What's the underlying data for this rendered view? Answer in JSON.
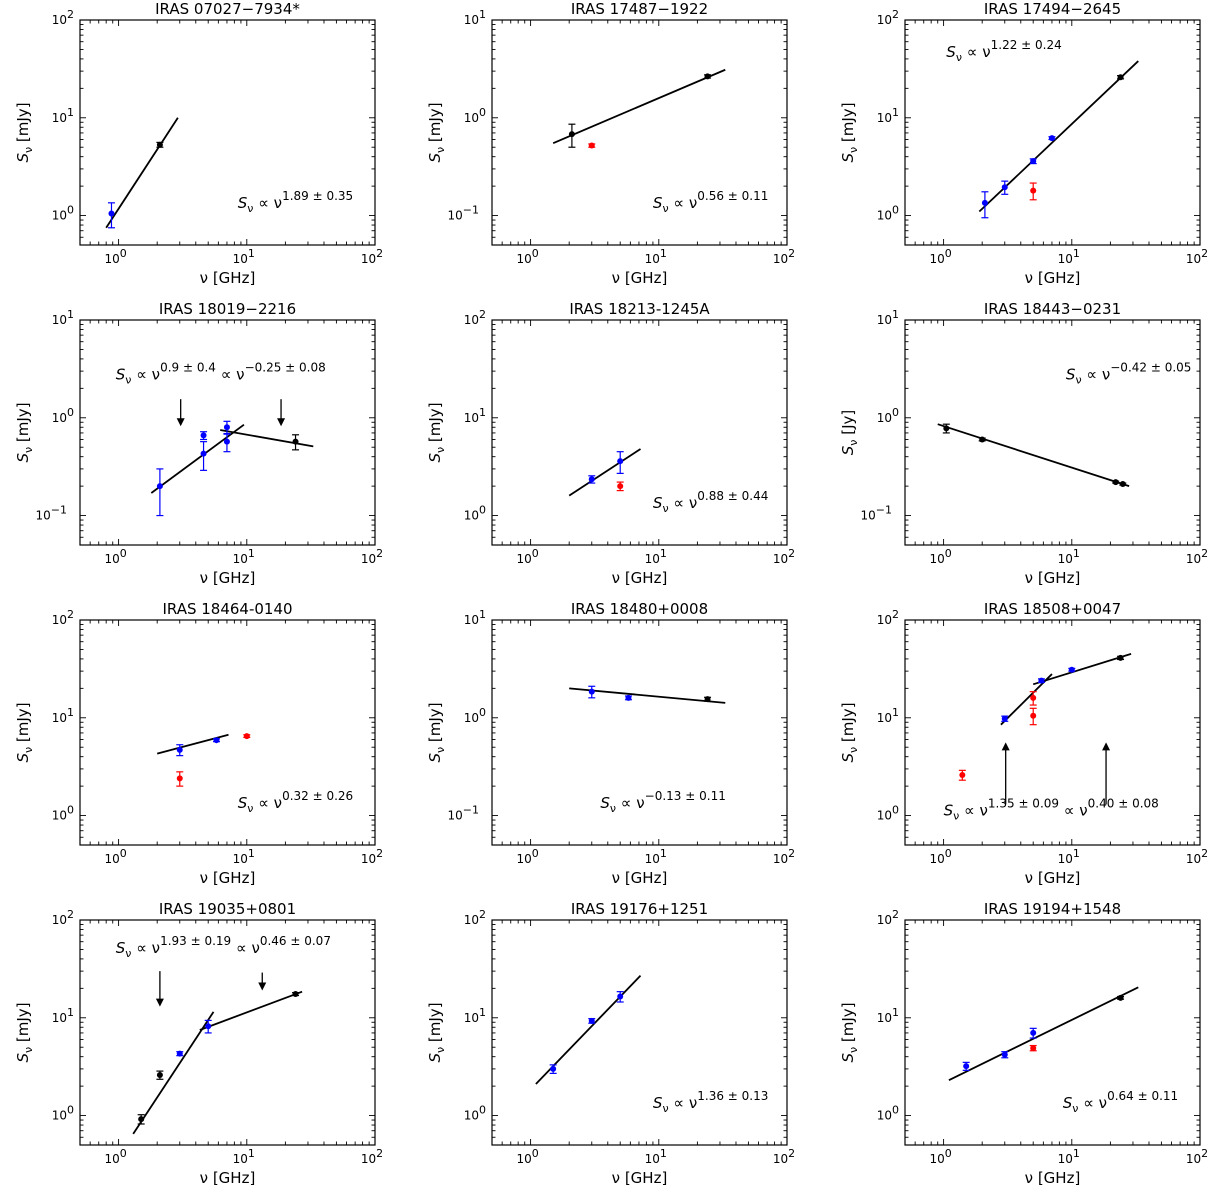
{
  "colors": {
    "archival": "#000000",
    "this_work": "#0000ff",
    "excluded": "#ff0000",
    "fit": "#000000"
  },
  "chart_data": [
    {
      "type": "scatter",
      "title": "IRAS 07027−7934*",
      "xlabel": "ν [GHz]",
      "ylabel_unit": "[mJy]",
      "xlim": [
        0.5,
        100
      ],
      "ylim": [
        0.5,
        100
      ],
      "log_x": true,
      "log_y": true,
      "xtick_exponents": [
        "0",
        "1",
        "2"
      ],
      "ytick_exponents": [
        "0",
        "1",
        "2"
      ],
      "series": [
        {
          "color": "blue",
          "points": [
            {
              "x": 0.88,
              "y": 1.05,
              "err": 0.3
            }
          ]
        },
        {
          "color": "black",
          "points": [
            {
              "x": 2.1,
              "y": 5.3,
              "err": 0.3
            }
          ]
        }
      ],
      "fits": [
        {
          "x": [
            0.8,
            2.9
          ],
          "y": [
            0.75,
            10.0
          ]
        }
      ],
      "annotation": {
        "exponent": "1.89 ± 0.35",
        "x": 8.5,
        "y": 1.2
      },
      "arrows": []
    },
    {
      "type": "scatter",
      "title": "IRAS 17487−1922",
      "xlabel": "ν [GHz]",
      "ylabel_unit": "[mJy]",
      "xlim": [
        0.5,
        100
      ],
      "ylim": [
        0.05,
        10
      ],
      "log_x": true,
      "log_y": true,
      "xtick_exponents": [
        "0",
        "1",
        "2"
      ],
      "ytick_exponents": [
        "−1",
        "0",
        "1"
      ],
      "series": [
        {
          "color": "black",
          "points": [
            {
              "x": 2.1,
              "y": 0.68,
              "err": 0.18
            },
            {
              "x": 24,
              "y": 2.65,
              "err": 0.1
            }
          ]
        },
        {
          "color": "red",
          "points": [
            {
              "x": 3,
              "y": 0.52,
              "err": 0.02
            }
          ]
        }
      ],
      "fits": [
        {
          "x": [
            1.5,
            33
          ],
          "y": [
            0.55,
            3.1
          ]
        }
      ],
      "annotation": {
        "exponent": "0.56 ± 0.11",
        "x": 9,
        "y": 0.12
      },
      "arrows": []
    },
    {
      "type": "scatter",
      "title": "IRAS 17494−2645",
      "xlabel": "ν [GHz]",
      "ylabel_unit": "[mJy]",
      "xlim": [
        0.5,
        100
      ],
      "ylim": [
        0.5,
        100
      ],
      "log_x": true,
      "log_y": true,
      "xtick_exponents": [
        "0",
        "1",
        "2"
      ],
      "ytick_exponents": [
        "0",
        "1",
        "2"
      ],
      "series": [
        {
          "color": "blue",
          "points": [
            {
              "x": 2.1,
              "y": 1.35,
              "err": 0.4
            },
            {
              "x": 3,
              "y": 1.95,
              "err": 0.3
            },
            {
              "x": 5,
              "y": 3.6,
              "err": 0.2
            },
            {
              "x": 7,
              "y": 6.2,
              "err": 0.2
            }
          ]
        },
        {
          "color": "black",
          "points": [
            {
              "x": 24,
              "y": 26,
              "err": 1.0
            }
          ]
        },
        {
          "color": "red",
          "points": [
            {
              "x": 5,
              "y": 1.8,
              "err": 0.35
            }
          ]
        }
      ],
      "fits": [
        {
          "x": [
            1.9,
            33
          ],
          "y": [
            1.1,
            38
          ]
        }
      ],
      "annotation": {
        "exponent": "1.22 ± 0.24",
        "x": 1.05,
        "y": 42
      },
      "arrows": []
    },
    {
      "type": "scatter",
      "title": "IRAS 18019−2216",
      "xlabel": "ν [GHz]",
      "ylabel_unit": "[mJy]",
      "xlim": [
        0.5,
        100
      ],
      "ylim": [
        0.05,
        10
      ],
      "log_x": true,
      "log_y": true,
      "xtick_exponents": [
        "0",
        "1",
        "2"
      ],
      "ytick_exponents": [
        "−1",
        "0",
        "1"
      ],
      "series": [
        {
          "color": "blue",
          "points": [
            {
              "x": 2.1,
              "y": 0.2,
              "err": 0.1
            },
            {
              "x": 4.6,
              "y": 0.66,
              "err": 0.06
            },
            {
              "x": 4.6,
              "y": 0.43,
              "err": 0.14
            },
            {
              "x": 7,
              "y": 0.8,
              "err": 0.12
            },
            {
              "x": 7,
              "y": 0.57,
              "err": 0.12
            }
          ]
        },
        {
          "color": "black",
          "points": [
            {
              "x": 24,
              "y": 0.57,
              "err": 0.1
            }
          ]
        }
      ],
      "fits": [
        {
          "x": [
            1.8,
            9.5
          ],
          "y": [
            0.17,
            0.85
          ]
        },
        {
          "x": [
            6.2,
            33
          ],
          "y": [
            0.75,
            0.51
          ]
        }
      ],
      "annotation": {
        "exponent": "0.9 ± 0.4",
        "exponent2": "−0.25 ± 0.08",
        "x": 0.95,
        "y": 2.45
      },
      "arrows": [
        {
          "x": 3.05,
          "y_from": 1.55,
          "y_to": 0.82
        },
        {
          "x": 18.5,
          "y_from": 1.55,
          "y_to": 0.82
        }
      ]
    },
    {
      "type": "scatter",
      "title": "IRAS 18213-1245A",
      "xlabel": "ν [GHz]",
      "ylabel_unit": "[mJy]",
      "xlim": [
        0.5,
        100
      ],
      "ylim": [
        0.5,
        100
      ],
      "log_x": true,
      "log_y": true,
      "xtick_exponents": [
        "0",
        "1",
        "2"
      ],
      "ytick_exponents": [
        "0",
        "1",
        "2"
      ],
      "series": [
        {
          "color": "blue",
          "points": [
            {
              "x": 3,
              "y": 2.35,
              "err": 0.2
            },
            {
              "x": 5,
              "y": 3.6,
              "err": 0.9
            }
          ]
        },
        {
          "color": "red",
          "points": [
            {
              "x": 5,
              "y": 2.0,
              "err": 0.2
            }
          ]
        }
      ],
      "fits": [
        {
          "x": [
            2,
            7.2
          ],
          "y": [
            1.6,
            4.8
          ]
        }
      ],
      "annotation": {
        "exponent": "0.88 ± 0.44",
        "x": 9,
        "y": 1.2
      },
      "arrows": []
    },
    {
      "type": "scatter",
      "title": "IRAS 18443−0231",
      "xlabel": "ν [GHz]",
      "ylabel_unit": "[Jy]",
      "xlim": [
        0.5,
        100
      ],
      "ylim": [
        0.05,
        10
      ],
      "log_x": true,
      "log_y": true,
      "xtick_exponents": [
        "0",
        "1",
        "2"
      ],
      "ytick_exponents": [
        "−1",
        "0",
        "1"
      ],
      "series": [
        {
          "color": "black",
          "points": [
            {
              "x": 1.05,
              "y": 0.78,
              "err": 0.08
            },
            {
              "x": 2,
              "y": 0.6,
              "err": 0.02
            },
            {
              "x": 22,
              "y": 0.22,
              "err": 0.005
            },
            {
              "x": 25,
              "y": 0.21,
              "err": 0.005
            }
          ]
        }
      ],
      "fits": [
        {
          "x": [
            0.9,
            28
          ],
          "y": [
            0.86,
            0.2
          ]
        }
      ],
      "annotation": {
        "exponent": "−0.42 ± 0.05",
        "x": 9,
        "y": 2.45
      },
      "arrows": []
    },
    {
      "type": "scatter",
      "title": "IRAS 18464-0140",
      "xlabel": "ν [GHz]",
      "ylabel_unit": "[mJy]",
      "xlim": [
        0.5,
        100
      ],
      "ylim": [
        0.5,
        100
      ],
      "log_x": true,
      "log_y": true,
      "xtick_exponents": [
        "0",
        "1",
        "2"
      ],
      "ytick_exponents": [
        "0",
        "1",
        "2"
      ],
      "series": [
        {
          "color": "blue",
          "points": [
            {
              "x": 3,
              "y": 4.7,
              "err": 0.6
            },
            {
              "x": 5.8,
              "y": 5.9,
              "err": 0.2
            }
          ]
        },
        {
          "color": "red",
          "points": [
            {
              "x": 3,
              "y": 2.4,
              "err": 0.4
            },
            {
              "x": 10,
              "y": 6.5,
              "err": 0.2
            }
          ]
        }
      ],
      "fits": [
        {
          "x": [
            2,
            7.2
          ],
          "y": [
            4.3,
            6.7
          ]
        }
      ],
      "annotation": {
        "exponent": "0.32 ± 0.26",
        "x": 8.5,
        "y": 1.2
      },
      "arrows": []
    },
    {
      "type": "scatter",
      "title": "IRAS 18480+0008",
      "xlabel": "ν [GHz]",
      "ylabel_unit": "[mJy]",
      "xlim": [
        0.5,
        100
      ],
      "ylim": [
        0.05,
        10
      ],
      "log_x": true,
      "log_y": true,
      "xtick_exponents": [
        "0",
        "1",
        "2"
      ],
      "ytick_exponents": [
        "−1",
        "0",
        "1"
      ],
      "series": [
        {
          "color": "blue",
          "points": [
            {
              "x": 3,
              "y": 1.85,
              "err": 0.25
            },
            {
              "x": 5.8,
              "y": 1.6,
              "err": 0.07
            }
          ]
        },
        {
          "color": "black",
          "points": [
            {
              "x": 24,
              "y": 1.55,
              "err": 0.07
            }
          ]
        }
      ],
      "fits": [
        {
          "x": [
            2,
            33
          ],
          "y": [
            2.0,
            1.42
          ]
        }
      ],
      "annotation": {
        "exponent": "−0.13 ± 0.11",
        "x": 3.5,
        "y": 0.12
      },
      "arrows": []
    },
    {
      "type": "scatter",
      "title": "IRAS 18508+0047",
      "xlabel": "ν [GHz]",
      "ylabel_unit": "[mJy]",
      "xlim": [
        0.5,
        100
      ],
      "ylim": [
        0.5,
        100
      ],
      "log_x": true,
      "log_y": true,
      "xtick_exponents": [
        "0",
        "1",
        "2"
      ],
      "ytick_exponents": [
        "0",
        "1",
        "2"
      ],
      "series": [
        {
          "color": "blue",
          "points": [
            {
              "x": 3,
              "y": 9.8,
              "err": 0.6
            },
            {
              "x": 5.8,
              "y": 24,
              "err": 1.0
            },
            {
              "x": 10,
              "y": 31,
              "err": 1.0
            }
          ]
        },
        {
          "color": "black",
          "points": [
            {
              "x": 24,
              "y": 41,
              "err": 1.5
            }
          ]
        },
        {
          "color": "red",
          "points": [
            {
              "x": 1.4,
              "y": 2.6,
              "err": 0.3
            },
            {
              "x": 5,
              "y": 16,
              "err": 2.5
            },
            {
              "x": 5,
              "y": 10.5,
              "err": 2.0
            }
          ]
        }
      ],
      "fits": [
        {
          "x": [
            2.8,
            7.0
          ],
          "y": [
            8.5,
            28
          ]
        },
        {
          "x": [
            5,
            29
          ],
          "y": [
            22,
            45
          ]
        }
      ],
      "annotation": {
        "exponent": "1.35 ± 0.09",
        "exponent2": "0.40 ± 0.08",
        "x": 1.0,
        "y": 1.0
      },
      "arrows": [
        {
          "x": 3.05,
          "y_from": 1.3,
          "y_to": 5.6
        },
        {
          "x": 18.5,
          "y_from": 1.3,
          "y_to": 5.6
        }
      ]
    },
    {
      "type": "scatter",
      "title": "IRAS 19035+0801",
      "xlabel": "ν [GHz]",
      "ylabel_unit": "[mJy]",
      "xlim": [
        0.5,
        100
      ],
      "ylim": [
        0.5,
        100
      ],
      "log_x": true,
      "log_y": true,
      "xtick_exponents": [
        "0",
        "1",
        "2"
      ],
      "ytick_exponents": [
        "0",
        "1",
        "2"
      ],
      "series": [
        {
          "color": "black",
          "points": [
            {
              "x": 1.5,
              "y": 0.92,
              "err": 0.1
            },
            {
              "x": 2.1,
              "y": 2.6,
              "err": 0.25
            },
            {
              "x": 24,
              "y": 17.5,
              "err": 0.6
            }
          ]
        },
        {
          "color": "blue",
          "points": [
            {
              "x": 3,
              "y": 4.3,
              "err": 0.2
            },
            {
              "x": 5,
              "y": 8.2,
              "err": 1.2
            }
          ]
        }
      ],
      "fits": [
        {
          "x": [
            1.3,
            5.5
          ],
          "y": [
            0.65,
            11.5
          ]
        },
        {
          "x": [
            4.3,
            27
          ],
          "y": [
            7.5,
            18.5
          ]
        }
      ],
      "annotation": {
        "exponent": "1.93 ± 0.19",
        "exponent2": "0.46 ± 0.07",
        "x": 0.95,
        "y": 46
      },
      "arrows": [
        {
          "x": 2.1,
          "y_from": 30,
          "y_to": 13
        },
        {
          "x": 13.2,
          "y_from": 29,
          "y_to": 19
        }
      ]
    },
    {
      "type": "scatter",
      "title": "IRAS 19176+1251",
      "xlabel": "ν [GHz]",
      "ylabel_unit": "[mJy]",
      "xlim": [
        0.5,
        100
      ],
      "ylim": [
        0.5,
        100
      ],
      "log_x": true,
      "log_y": true,
      "xtick_exponents": [
        "0",
        "1",
        "2"
      ],
      "ytick_exponents": [
        "0",
        "1",
        "2"
      ],
      "series": [
        {
          "color": "blue",
          "points": [
            {
              "x": 1.5,
              "y": 3.0,
              "err": 0.3
            },
            {
              "x": 3,
              "y": 9.3,
              "err": 0.5
            },
            {
              "x": 5,
              "y": 16.5,
              "err": 2.0
            }
          ]
        }
      ],
      "fits": [
        {
          "x": [
            1.1,
            7.2
          ],
          "y": [
            2.1,
            27
          ]
        }
      ],
      "annotation": {
        "exponent": "1.36 ± 0.13",
        "x": 9,
        "y": 1.2
      },
      "arrows": []
    },
    {
      "type": "scatter",
      "title": "IRAS 19194+1548",
      "xlabel": "ν [GHz]",
      "ylabel_unit": "[mJy]",
      "xlim": [
        0.5,
        100
      ],
      "ylim": [
        0.5,
        100
      ],
      "log_x": true,
      "log_y": true,
      "xtick_exponents": [
        "0",
        "1",
        "2"
      ],
      "ytick_exponents": [
        "0",
        "1",
        "2"
      ],
      "series": [
        {
          "color": "blue",
          "points": [
            {
              "x": 1.5,
              "y": 3.2,
              "err": 0.3
            },
            {
              "x": 3,
              "y": 4.2,
              "err": 0.3
            },
            {
              "x": 5,
              "y": 7.0,
              "err": 0.8
            }
          ]
        },
        {
          "color": "red",
          "points": [
            {
              "x": 5,
              "y": 4.9,
              "err": 0.3
            }
          ]
        },
        {
          "color": "black",
          "points": [
            {
              "x": 24,
              "y": 16,
              "err": 0.5
            }
          ]
        }
      ],
      "fits": [
        {
          "x": [
            1.1,
            33
          ],
          "y": [
            2.3,
            20.5
          ]
        }
      ],
      "annotation": {
        "exponent": "0.64 ± 0.11",
        "x": 8.5,
        "y": 1.2
      },
      "arrows": []
    }
  ]
}
